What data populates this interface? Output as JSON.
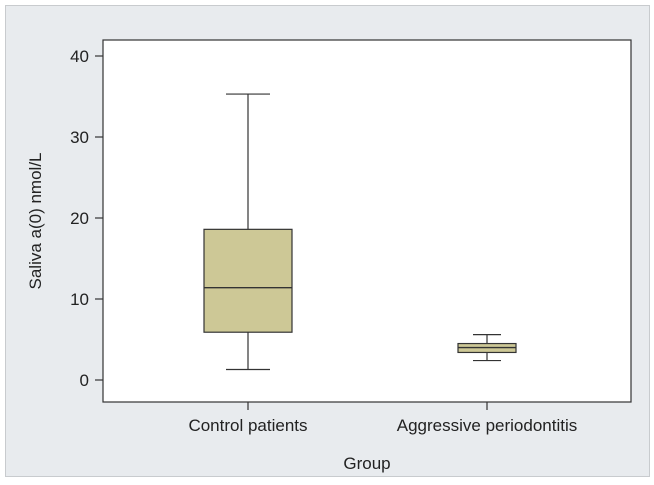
{
  "chart_data": {
    "type": "boxplot",
    "title": "",
    "xlabel": "Group",
    "ylabel": "Saliva a(0) nmol/L",
    "ylim": [
      -3,
      42
    ],
    "yticks": [
      0,
      10,
      20,
      30,
      40
    ],
    "grid": false,
    "categories": [
      "Control patients",
      "Aggressive periodontitis"
    ],
    "boxes": [
      {
        "category": "Control patients",
        "min": 1.3,
        "q1": 5.9,
        "median": 11.4,
        "q3": 18.6,
        "max": 35.3
      },
      {
        "category": "Aggressive periodontitis",
        "min": 2.4,
        "q1": 3.4,
        "median": 4.0,
        "q3": 4.5,
        "max": 5.6
      }
    ],
    "colors": {
      "box_fill": "#cdc896",
      "line": "#333333",
      "plot_bg": "#ffffff",
      "frame_bg": "#e8ebee"
    }
  }
}
